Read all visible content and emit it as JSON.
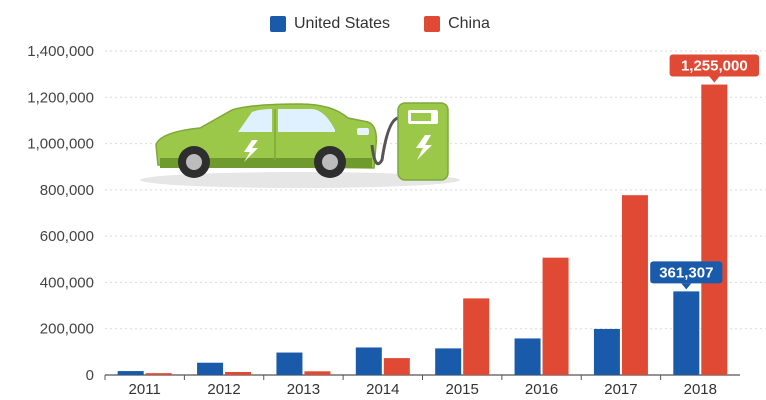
{
  "legend": {
    "items": [
      {
        "label": "United States",
        "color": "#1a5aab"
      },
      {
        "label": "China",
        "color": "#e04a35"
      }
    ]
  },
  "illustration": {
    "icon": "electric-car-charging-icon"
  },
  "chart_data": {
    "type": "bar",
    "title": "",
    "xlabel": "",
    "ylabel": "",
    "categories": [
      "2011",
      "2012",
      "2013",
      "2014",
      "2015",
      "2016",
      "2017",
      "2018"
    ],
    "series": [
      {
        "name": "United States",
        "color": "#1a5aab",
        "values": [
          17000,
          53000,
          97000,
          119000,
          115000,
          158000,
          199000,
          361307
        ]
      },
      {
        "name": "China",
        "color": "#e04a35",
        "values": [
          8000,
          13000,
          16000,
          73000,
          331000,
          507000,
          777000,
          1255000
        ]
      }
    ],
    "ylim": [
      0,
      1400000
    ],
    "yticks": [
      "0",
      "200,000",
      "400,000",
      "600,000",
      "800,000",
      "1,000,000",
      "1,200,000",
      "1,400,000"
    ],
    "grid": true,
    "legend_position": "top",
    "data_labels": [
      {
        "series": "United States",
        "category": "2018",
        "text": "361,307"
      },
      {
        "series": "China",
        "category": "2018",
        "text": "1,255,000"
      }
    ]
  }
}
